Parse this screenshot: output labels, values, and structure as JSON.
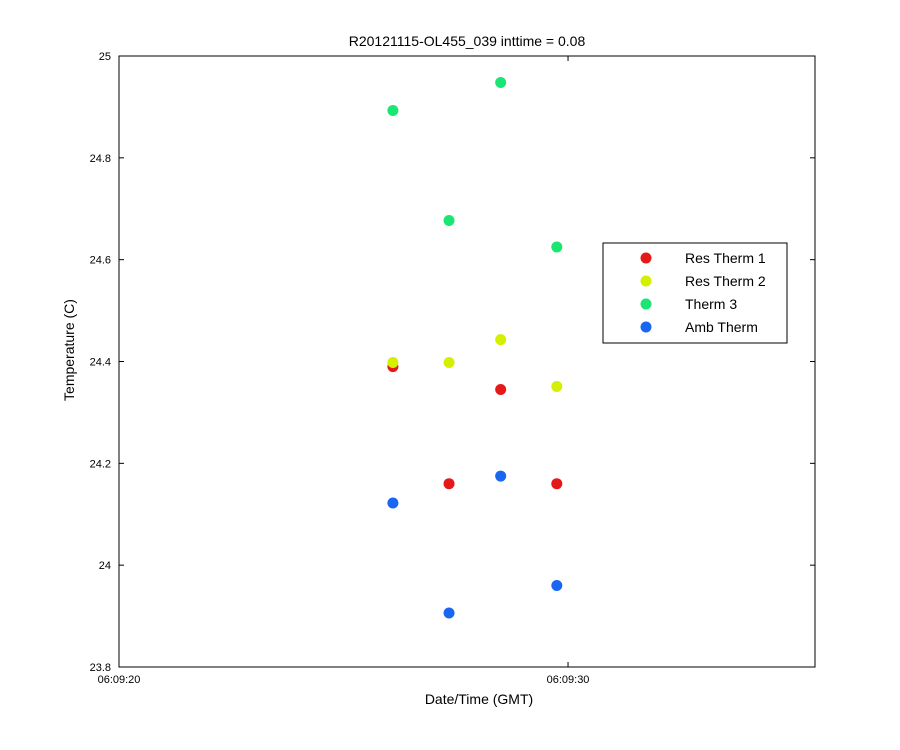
{
  "chart_data": {
    "type": "scatter",
    "title": "R20121115-OL455_039 inttime = 0.08",
    "xlabel": "Date/Time (GMT)",
    "ylabel": "Temperature (C)",
    "x_unit": "time (GMT)",
    "xlim": [
      "06:09:20",
      "06:09:35.5"
    ],
    "ylim": [
      23.8,
      25.0
    ],
    "xticks": [
      "06:09:20",
      "06:09:30"
    ],
    "yticks": [
      23.8,
      24.0,
      24.2,
      24.4,
      24.6,
      24.8,
      25.0
    ],
    "ytick_labels": [
      "23.8",
      "24",
      "24.2",
      "24.4",
      "24.6",
      "24.8",
      "25"
    ],
    "grid": false,
    "legend_position": "right-center",
    "series": [
      {
        "name": "Res Therm 1",
        "color": "#e61919",
        "points": [
          {
            "x": "06:09:26.1",
            "y": 24.39
          },
          {
            "x": "06:09:27.35",
            "y": 24.16
          },
          {
            "x": "06:09:28.5",
            "y": 24.345
          },
          {
            "x": "06:09:29.75",
            "y": 24.16
          }
        ]
      },
      {
        "name": "Res Therm 2",
        "color": "#d4f000",
        "points": [
          {
            "x": "06:09:26.1",
            "y": 24.398
          },
          {
            "x": "06:09:27.35",
            "y": 24.398
          },
          {
            "x": "06:09:28.5",
            "y": 24.443
          },
          {
            "x": "06:09:29.75",
            "y": 24.351
          }
        ]
      },
      {
        "name": "Therm 3",
        "color": "#19e673",
        "points": [
          {
            "x": "06:09:26.1",
            "y": 24.893
          },
          {
            "x": "06:09:27.35",
            "y": 24.677
          },
          {
            "x": "06:09:28.5",
            "y": 24.948
          },
          {
            "x": "06:09:29.75",
            "y": 24.625
          }
        ]
      },
      {
        "name": "Amb Therm",
        "color": "#1966f0",
        "points": [
          {
            "x": "06:09:26.1",
            "y": 24.122
          },
          {
            "x": "06:09:27.35",
            "y": 23.906
          },
          {
            "x": "06:09:28.5",
            "y": 24.175
          },
          {
            "x": "06:09:29.75",
            "y": 23.96
          }
        ]
      }
    ]
  }
}
